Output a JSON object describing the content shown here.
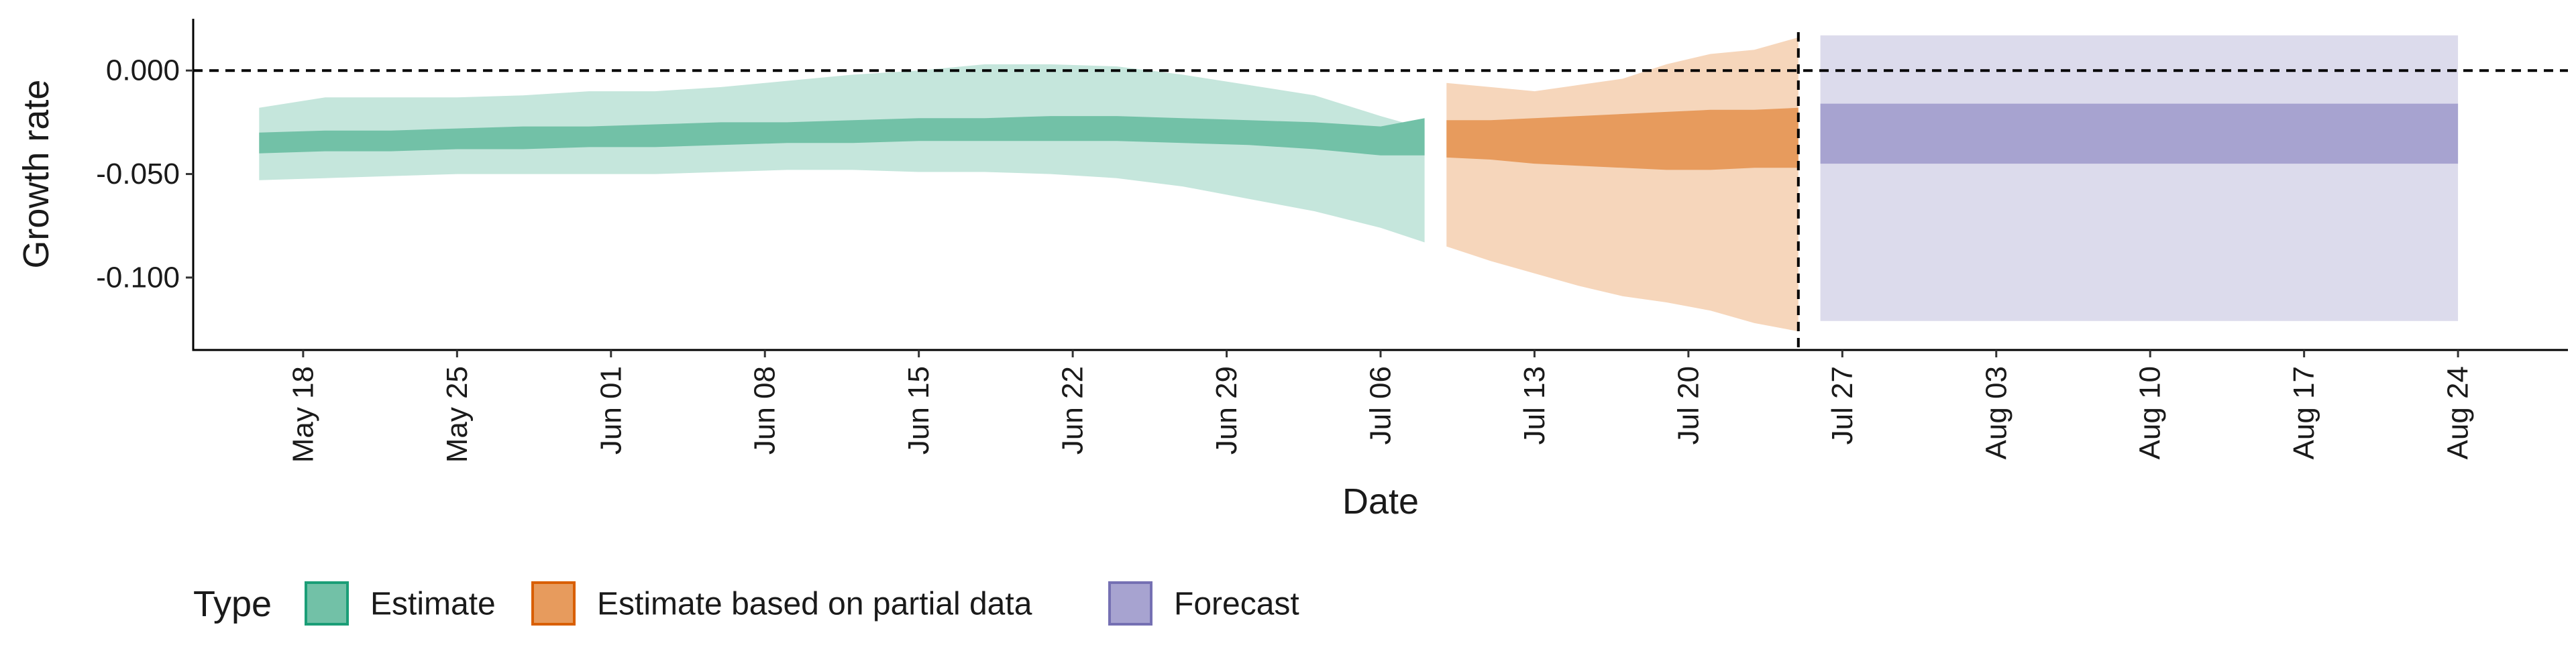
{
  "chart_data": {
    "type": "area",
    "xlabel": "Date",
    "ylabel": "Growth rate",
    "xlim": [
      "2020-05-13",
      "2020-08-29"
    ],
    "ylim": [
      -0.135,
      0.025
    ],
    "x_ticks": [
      {
        "date": "2020-05-18",
        "label": "May 18"
      },
      {
        "date": "2020-05-25",
        "label": "May 25"
      },
      {
        "date": "2020-06-01",
        "label": "Jun 01"
      },
      {
        "date": "2020-06-08",
        "label": "Jun 08"
      },
      {
        "date": "2020-06-15",
        "label": "Jun 15"
      },
      {
        "date": "2020-06-22",
        "label": "Jun 22"
      },
      {
        "date": "2020-06-29",
        "label": "Jun 29"
      },
      {
        "date": "2020-07-06",
        "label": "Jul 06"
      },
      {
        "date": "2020-07-13",
        "label": "Jul 13"
      },
      {
        "date": "2020-07-20",
        "label": "Jul 20"
      },
      {
        "date": "2020-07-27",
        "label": "Jul 27"
      },
      {
        "date": "2020-08-03",
        "label": "Aug 03"
      },
      {
        "date": "2020-08-10",
        "label": "Aug 10"
      },
      {
        "date": "2020-08-17",
        "label": "Aug 17"
      },
      {
        "date": "2020-08-24",
        "label": "Aug 24"
      }
    ],
    "y_ticks": [
      {
        "value": 0.0,
        "label": "0.000"
      },
      {
        "value": -0.05,
        "label": "-0.050"
      },
      {
        "value": -0.1,
        "label": "-0.100"
      }
    ],
    "reference_lines": {
      "horizontal_y": 0.0,
      "vertical_date": "2020-07-25",
      "style": "dashed"
    },
    "grid": false,
    "legend": {
      "title": "Type",
      "placement": "bottom-left"
    },
    "series": [
      {
        "name": "Estimate",
        "color": "#1b9e77",
        "fill_outer": "#c5e6dc",
        "fill_inner": "#72c1a7",
        "x": [
          "2020-05-16",
          "2020-05-19",
          "2020-05-22",
          "2020-05-25",
          "2020-05-28",
          "2020-05-31",
          "2020-06-03",
          "2020-06-06",
          "2020-06-09",
          "2020-06-12",
          "2020-06-15",
          "2020-06-18",
          "2020-06-21",
          "2020-06-24",
          "2020-06-27",
          "2020-06-30",
          "2020-07-03",
          "2020-07-06",
          "2020-07-08"
        ],
        "outer_upper": [
          -0.018,
          -0.013,
          -0.013,
          -0.013,
          -0.012,
          -0.01,
          -0.01,
          -0.008,
          -0.005,
          -0.002,
          0.0,
          0.003,
          0.003,
          0.002,
          -0.002,
          -0.007,
          -0.012,
          -0.022,
          -0.028
        ],
        "inner_upper": [
          -0.03,
          -0.029,
          -0.029,
          -0.028,
          -0.027,
          -0.027,
          -0.026,
          -0.025,
          -0.025,
          -0.024,
          -0.023,
          -0.023,
          -0.022,
          -0.022,
          -0.023,
          -0.024,
          -0.025,
          -0.027,
          -0.023
        ],
        "inner_lower": [
          -0.04,
          -0.039,
          -0.039,
          -0.038,
          -0.038,
          -0.037,
          -0.037,
          -0.036,
          -0.035,
          -0.035,
          -0.034,
          -0.034,
          -0.034,
          -0.034,
          -0.035,
          -0.036,
          -0.038,
          -0.041,
          -0.041
        ],
        "outer_lower": [
          -0.053,
          -0.052,
          -0.051,
          -0.05,
          -0.05,
          -0.05,
          -0.05,
          -0.049,
          -0.048,
          -0.048,
          -0.049,
          -0.049,
          -0.05,
          -0.052,
          -0.056,
          -0.062,
          -0.068,
          -0.076,
          -0.083
        ]
      },
      {
        "name": "Estimate based on partial data",
        "color": "#d95f02",
        "fill_outer": "#f6d6bb",
        "fill_inner": "#e79b5d",
        "x": [
          "2020-07-09",
          "2020-07-11",
          "2020-07-13",
          "2020-07-15",
          "2020-07-17",
          "2020-07-19",
          "2020-07-21",
          "2020-07-23",
          "2020-07-25"
        ],
        "outer_upper": [
          -0.006,
          -0.008,
          -0.01,
          -0.007,
          -0.004,
          0.003,
          0.008,
          0.01,
          0.016
        ],
        "inner_upper": [
          -0.024,
          -0.024,
          -0.023,
          -0.022,
          -0.021,
          -0.02,
          -0.019,
          -0.019,
          -0.018
        ],
        "inner_lower": [
          -0.042,
          -0.043,
          -0.045,
          -0.046,
          -0.047,
          -0.048,
          -0.048,
          -0.047,
          -0.047
        ],
        "outer_lower": [
          -0.085,
          -0.092,
          -0.098,
          -0.104,
          -0.109,
          -0.112,
          -0.116,
          -0.122,
          -0.126
        ]
      },
      {
        "name": "Forecast",
        "color": "#7570b3",
        "fill_outer": "#dcdbec",
        "fill_inner": "#a7a3d0",
        "x": [
          "2020-07-26",
          "2020-08-24"
        ],
        "outer_upper": [
          0.017,
          0.017
        ],
        "inner_upper": [
          -0.016,
          -0.016
        ],
        "inner_lower": [
          -0.045,
          -0.045
        ],
        "outer_lower": [
          -0.121,
          -0.121
        ]
      }
    ]
  }
}
